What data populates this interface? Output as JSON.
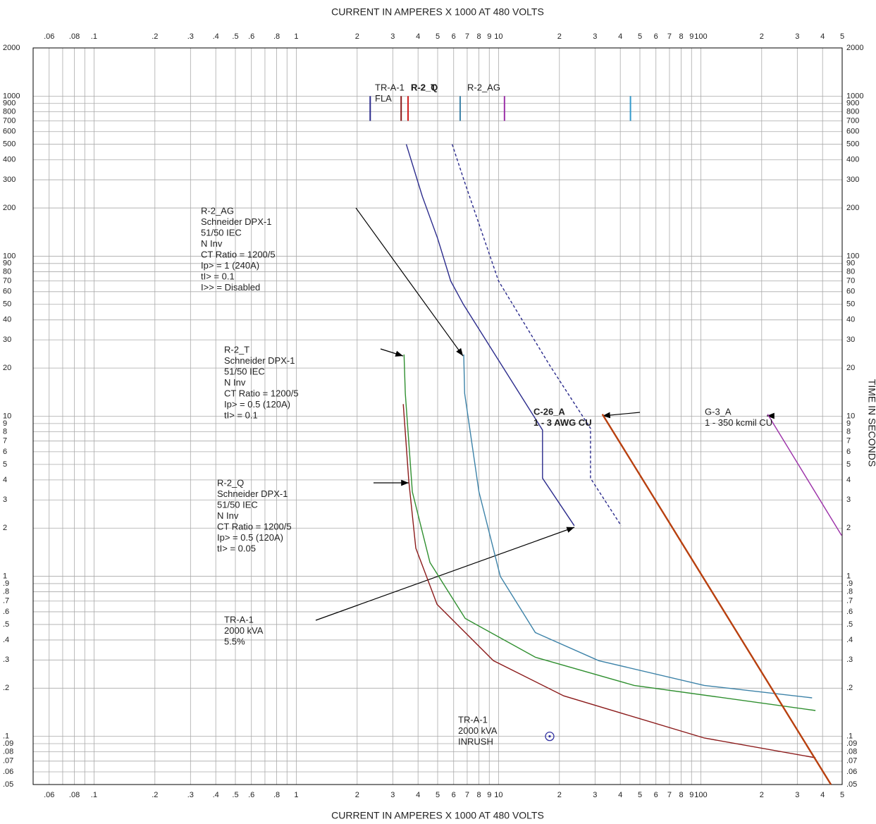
{
  "chart_data": {
    "type": "line",
    "xlabel": "CURRENT IN AMPERES X 1000 AT 480 VOLTS",
    "ylabel": "TIME IN SECONDS",
    "xscale": "log",
    "yscale": "log",
    "grid": true,
    "xlim": [
      0.05,
      500
    ],
    "ylim": [
      0.05,
      2000
    ],
    "xticks": [
      {
        "value": 0.06,
        "label": ".06"
      },
      {
        "value": 0.08,
        "label": ".08"
      },
      {
        "value": 0.1,
        "label": ".1"
      },
      {
        "value": 0.2,
        "label": ".2"
      },
      {
        "value": 0.3,
        "label": ".3"
      },
      {
        "value": 0.4,
        "label": ".4"
      },
      {
        "value": 0.5,
        "label": ".5"
      },
      {
        "value": 0.6,
        "label": ".6"
      },
      {
        "value": 0.8,
        "label": ".8"
      },
      1,
      2,
      3,
      4,
      5,
      6,
      7,
      8,
      9,
      10,
      {
        "value": 20,
        "label": "2"
      },
      {
        "value": 30,
        "label": "3"
      },
      {
        "value": 40,
        "label": "4"
      },
      {
        "value": 50,
        "label": "5"
      },
      {
        "value": 60,
        "label": "6"
      },
      {
        "value": 70,
        "label": "7"
      },
      {
        "value": 80,
        "label": "8"
      },
      {
        "value": 90,
        "label": "9"
      },
      100,
      {
        "value": 200,
        "label": "2"
      },
      {
        "value": 300,
        "label": "3"
      },
      {
        "value": 400,
        "label": "4"
      },
      {
        "value": 500,
        "label": "5"
      }
    ],
    "xminor": [
      0.07,
      0.09,
      0.7,
      0.9
    ],
    "yticks": [
      2000,
      1000,
      900,
      800,
      700,
      600,
      500,
      400,
      300,
      200,
      100,
      90,
      80,
      70,
      60,
      50,
      40,
      30,
      20,
      10,
      9,
      8,
      7,
      6,
      5,
      4,
      3,
      2,
      1,
      {
        "value": 0.9,
        "label": ".9"
      },
      {
        "value": 0.8,
        "label": ".8"
      },
      {
        "value": 0.7,
        "label": ".7"
      },
      {
        "value": 0.6,
        "label": ".6"
      },
      {
        "value": 0.5,
        "label": ".5"
      },
      {
        "value": 0.4,
        "label": ".4"
      },
      {
        "value": 0.3,
        "label": ".3"
      },
      {
        "value": 0.2,
        "label": ".2"
      },
      {
        "value": 0.1,
        "label": ".1"
      },
      {
        "value": 0.09,
        "label": ".09"
      },
      {
        "value": 0.08,
        "label": ".08"
      },
      {
        "value": 0.07,
        "label": ".07"
      },
      {
        "value": 0.06,
        "label": ".06"
      },
      {
        "value": 0.05,
        "label": ".05"
      }
    ],
    "series": [
      {
        "color": "#2b2b8c",
        "dashed": false,
        "x": [
          3.5,
          4.2,
          5,
          5.8,
          6.7,
          16.5,
          16.5,
          23.7
        ],
        "values": [
          500,
          236,
          129,
          70,
          50,
          8.2,
          4.1,
          2.07
        ]
      },
      {
        "color": "#2b2b8c",
        "dashed": true,
        "x": [
          5.9,
          6.8,
          10,
          17.9,
          28.5,
          28.5,
          40.4
        ],
        "values": [
          500,
          290,
          70,
          20.8,
          8.4,
          4.1,
          2.07
        ]
      },
      {
        "color": "#3c82a8",
        "dashed": false,
        "x": [
          6.73,
          6.8,
          8,
          10.2,
          15.2,
          31.3,
          104,
          355
        ],
        "values": [
          24.3,
          13.9,
          3.37,
          1,
          0.445,
          0.297,
          0.208,
          0.174
        ]
      },
      {
        "color": "#2f8f2f",
        "dashed": false,
        "x": [
          3.41,
          3.46,
          3.75,
          4.58,
          6.84,
          15.2,
          46.8,
          369
        ],
        "values": [
          24.3,
          13.9,
          3.37,
          1.22,
          0.545,
          0.312,
          0.208,
          0.145
        ]
      },
      {
        "color": "#8b1a1a",
        "dashed": false,
        "x": [
          3.38,
          3.6,
          3.9,
          4.97,
          9.43,
          21,
          104,
          369
        ],
        "values": [
          11.9,
          3.92,
          1.5,
          0.667,
          0.297,
          0.179,
          0.0976,
          0.0735
        ]
      },
      {
        "color": "#b8400f",
        "dashed": false,
        "x": [
          32.6,
          440
        ],
        "values": [
          10.3,
          0.05
        ]
      },
      {
        "color": "#9b30a8",
        "dashed": false,
        "x": [
          214,
          497
        ],
        "values": [
          10.3,
          1.8
        ]
      }
    ],
    "marker_span": [
      700,
      1000
    ],
    "markers": [
      {
        "x": 2.32,
        "color": "#2b2b8c"
      },
      {
        "x": 3.3,
        "color": "#8b1a1a"
      },
      {
        "x": 3.57,
        "color": "#d02020"
      },
      {
        "x": 6.46,
        "color": "#3c82a8"
      },
      {
        "x": 10.7,
        "color": "#9b30a8"
      },
      {
        "x": 44.9,
        "color": "#3399cc"
      }
    ],
    "points": [
      {
        "x": 17.9,
        "y": 0.1,
        "color": "#3030a0"
      }
    ],
    "annotations": [
      [
        "R-2_AG",
        "Schneider DPX-1",
        "51/50 IEC",
        "N Inv",
        "CT Ratio = 1200/5",
        "Ip> = 1 (240A)",
        "tI> = 0.1",
        "I>> = Disabled"
      ],
      [
        "R-2_T",
        "Schneider DPX-1",
        "51/50 IEC",
        "N Inv",
        "CT Ratio = 1200/5",
        "Ip> = 0.5 (120A)",
        "tI> = 0.1"
      ],
      [
        "R-2_Q",
        "Schneider DPX-1",
        "51/50 IEC",
        "N Inv",
        "CT Ratio = 1200/5",
        "Ip> = 0.5 (120A)",
        "tI> = 0.05"
      ],
      [
        "TR-A-1",
        "2000 kVA",
        "5.5%"
      ],
      [
        "TR-A-1",
        "2000 kVA",
        "INRUSH"
      ],
      [
        "C-26_A",
        "1 - 3 AWG CU"
      ],
      [
        "G-3_A",
        "1 - 350 kcmil CU"
      ],
      [
        "TR-A-1",
        "FLA"
      ],
      [
        "R-2_T"
      ],
      [
        "R-2_Q"
      ],
      [
        "R-2_AG"
      ]
    ]
  }
}
